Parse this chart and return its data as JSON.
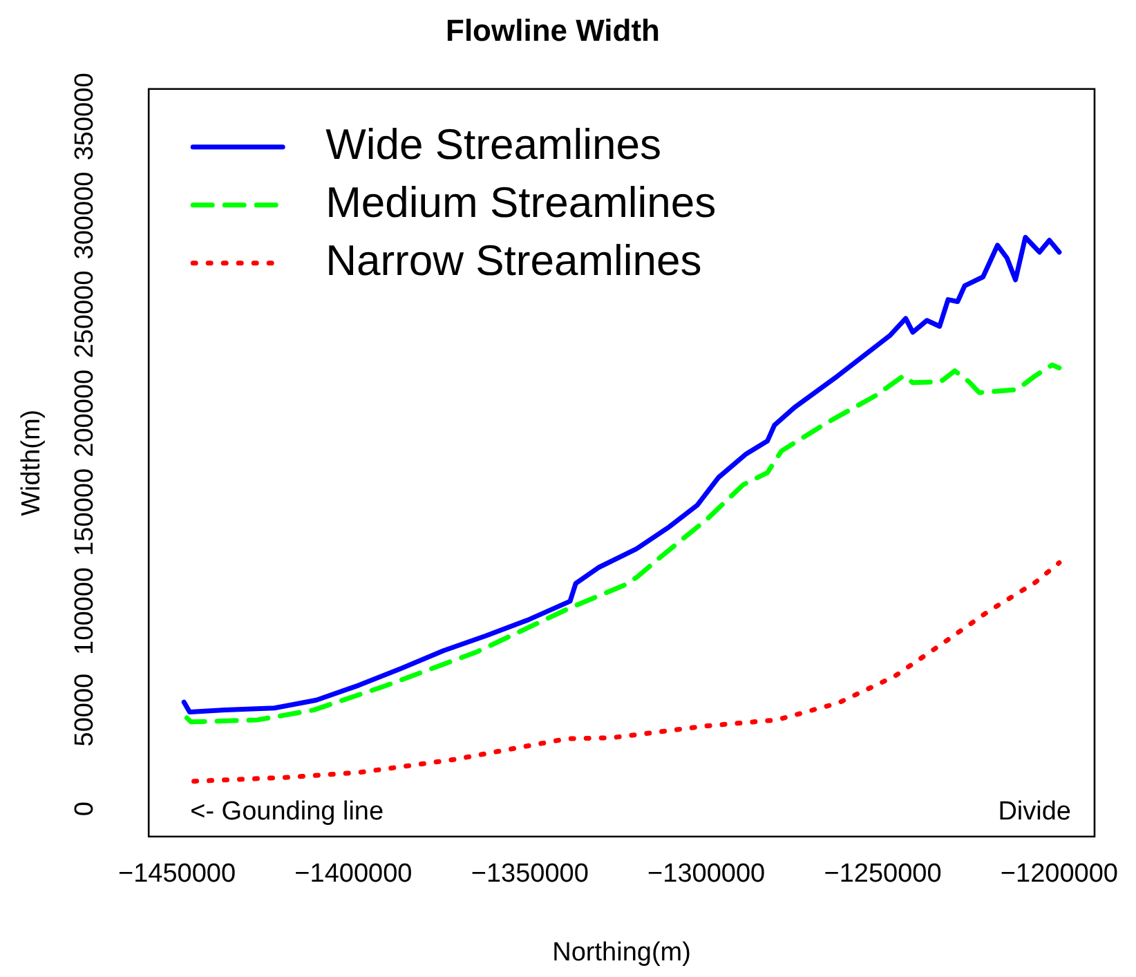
{
  "chart_data": {
    "type": "line",
    "title": "Flowline Width",
    "xlabel": "Northing(m)",
    "ylabel": "Width(m)",
    "xlim": [
      -1458000,
      -1190000
    ],
    "xticks": [
      -1450000,
      -1400000,
      -1350000,
      -1300000,
      -1250000,
      -1200000
    ],
    "ylim": [
      -14000,
      364000
    ],
    "yticks": [
      0,
      50000,
      100000,
      150000,
      200000,
      250000,
      300000,
      350000
    ],
    "grid": false,
    "legend": "top left",
    "marker": "none",
    "annotations": [
      "<- Gounding line",
      "Divide"
    ],
    "series": [
      {
        "name": "Wide Streamlines",
        "color": "#0000ff",
        "line_style": "solid",
        "x": [
          -1448000,
          -1446400,
          -1436400,
          -1422400,
          -1410500,
          -1398500,
          -1386500,
          -1374500,
          -1362500,
          -1350600,
          -1338600,
          -1337000,
          -1330600,
          -1319800,
          -1310600,
          -1302600,
          -1296600,
          -1288700,
          -1282700,
          -1280700,
          -1275000,
          -1262700,
          -1247900,
          -1243500,
          -1241500,
          -1237500,
          -1233900,
          -1231500,
          -1228800,
          -1226800,
          -1221600,
          -1217500,
          -1214800,
          -1212400,
          -1209600,
          -1205600,
          -1202800,
          -1200000
        ],
        "values": [
          54000,
          49000,
          50000,
          51000,
          55000,
          62500,
          71000,
          80000,
          87500,
          95500,
          105000,
          114000,
          122000,
          131500,
          142500,
          153500,
          167500,
          179500,
          186000,
          194000,
          203000,
          219000,
          239500,
          248000,
          241000,
          247000,
          244000,
          257500,
          256500,
          264500,
          269000,
          285000,
          278500,
          267500,
          289000,
          281500,
          287500,
          281500
        ]
      },
      {
        "name": "Medium Streamlines",
        "color": "#00ff00",
        "line_style": "dashed",
        "x": [
          -1447200,
          -1446000,
          -1427200,
          -1411300,
          -1391300,
          -1364900,
          -1338200,
          -1323400,
          -1319800,
          -1313200,
          -1299800,
          -1289500,
          -1282700,
          -1278700,
          -1265600,
          -1252000,
          -1244100,
          -1241500,
          -1233600,
          -1229600,
          -1225600,
          -1222700,
          -1212000,
          -1206800,
          -1202000,
          -1200000
        ],
        "values": [
          46000,
          44000,
          45000,
          50000,
          62000,
          79500,
          102000,
          113000,
          117000,
          127000,
          146500,
          164000,
          170000,
          181000,
          195500,
          209000,
          219000,
          215500,
          216000,
          221500,
          216000,
          210500,
          212000,
          219000,
          224500,
          223000
        ]
      },
      {
        "name": "Narrow Streamlines",
        "color": "#ff0000",
        "line_style": "dotted",
        "x": [
          -1445200,
          -1418100,
          -1398100,
          -1371400,
          -1339500,
          -1326700,
          -1299800,
          -1280000,
          -1262700,
          -1246700,
          -1233600,
          -1220000,
          -1206800,
          -1200000
        ],
        "values": [
          14000,
          16000,
          18500,
          25000,
          35500,
          36000,
          42000,
          45000,
          53500,
          67000,
          83000,
          100000,
          114500,
          124500
        ]
      }
    ]
  }
}
